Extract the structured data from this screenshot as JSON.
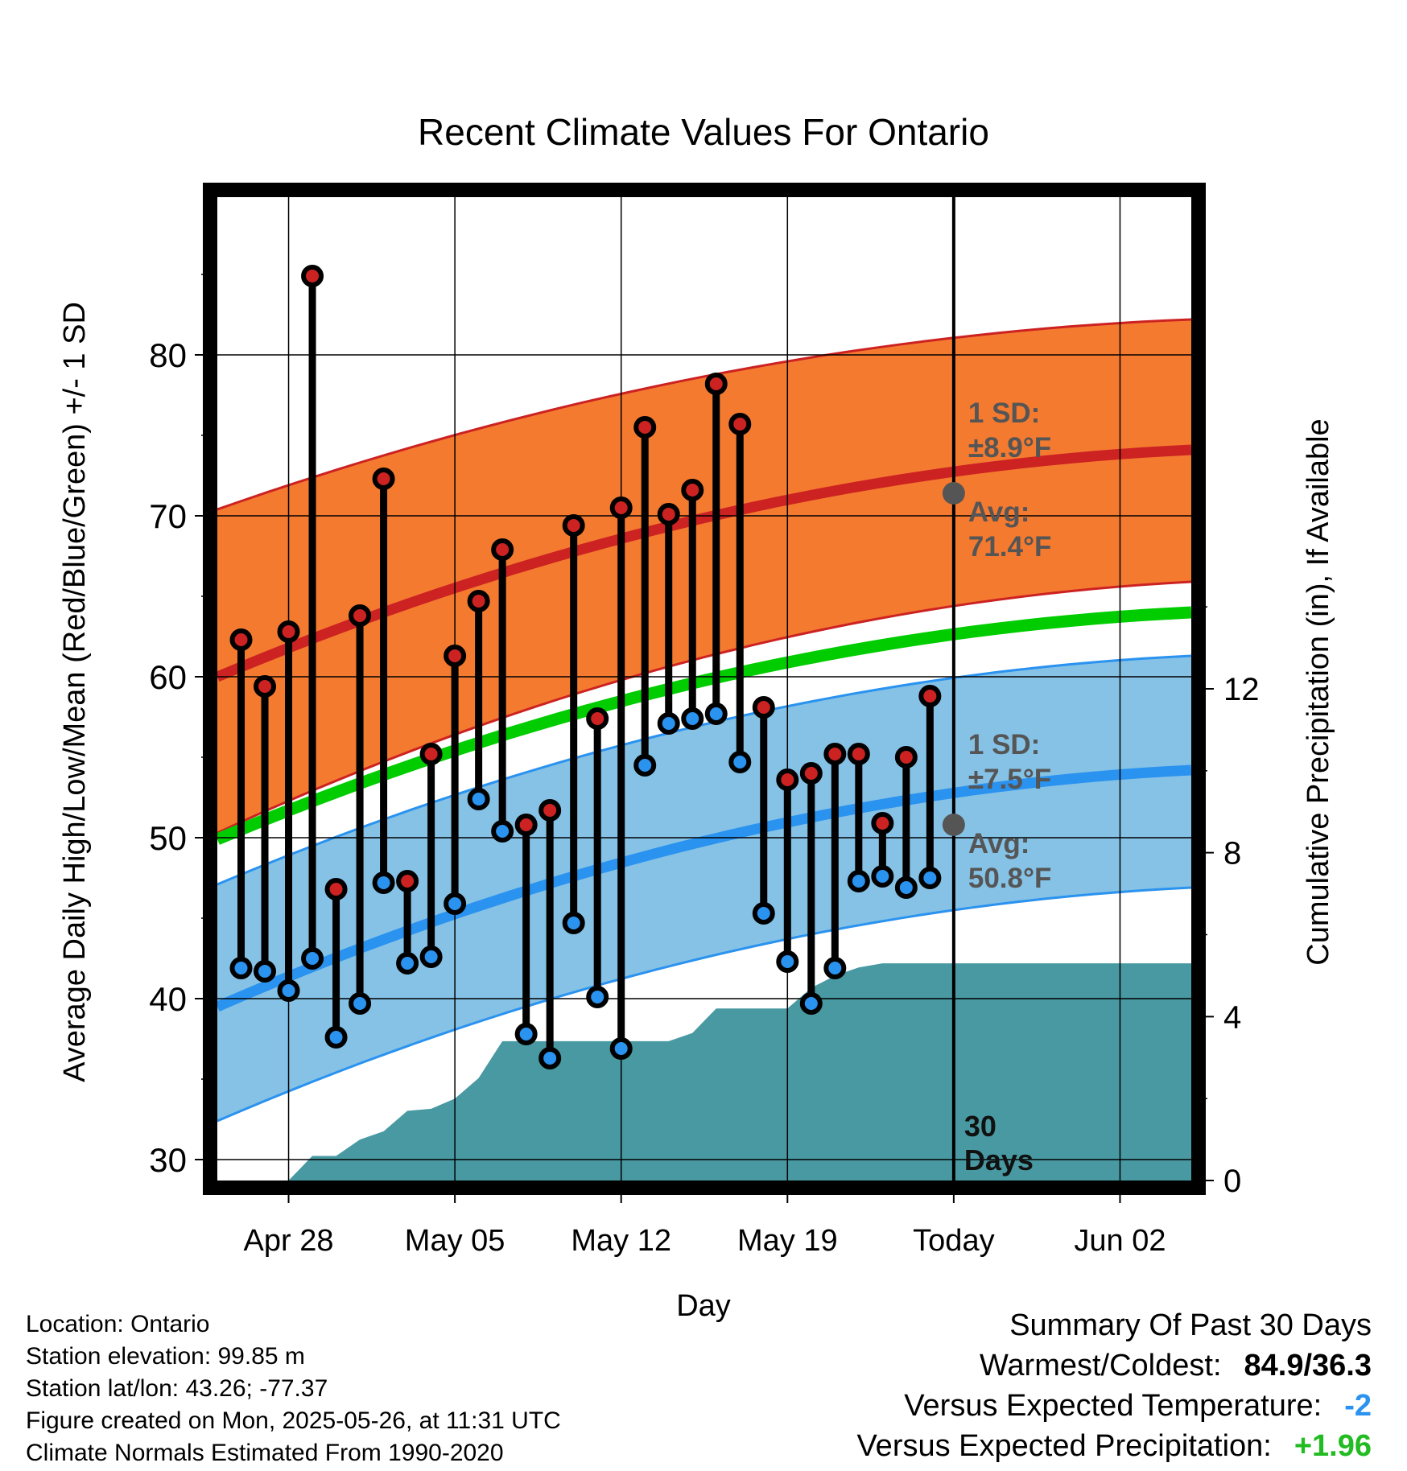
{
  "chart_data": {
    "type": "line",
    "title": "Recent Climate Values For Ontario",
    "xlabel": "Day",
    "ylabel": "Average Daily High/Low/Mean (Red/Blue/Green) +/- 1 SD",
    "y2label": "Cumulative Precipitation (in), If Available",
    "xticks": [
      "Apr 28",
      "May 05",
      "May 12",
      "May 19",
      "Today",
      "Jun 02"
    ],
    "yticks": [
      30,
      40,
      50,
      60,
      70,
      80
    ],
    "y2ticks": [
      0,
      4,
      8,
      12
    ],
    "ylim": [
      28.7,
      89.8
    ],
    "y2lim": [
      0,
      24
    ],
    "xlim": [
      -3,
      38
    ],
    "xticks_day_index": [
      0,
      7,
      14,
      21,
      28,
      35
    ],
    "today_day_index": 28,
    "today_label": "30 Days",
    "normals": {
      "high_avg": [
        60.0,
        74.1
      ],
      "high_upper": [
        70.4,
        82.2
      ],
      "high_lower": [
        50.3,
        65.9
      ],
      "low_avg": [
        39.5,
        54.2
      ],
      "low_upper": [
        47.1,
        61.3
      ],
      "low_lower": [
        32.4,
        46.9
      ],
      "mean_avg": [
        49.9,
        64.0
      ]
    },
    "annotations": {
      "high_sd": "1 SD:",
      "high_sd_value": "±8.9°F",
      "high_avg_label": "Avg:",
      "high_avg_value": "71.4°F",
      "low_sd": "1 SD:",
      "low_sd_value": "±7.5°F",
      "low_avg_label": "Avg:",
      "low_avg_value": "50.8°F"
    },
    "daily_days": [
      -2,
      -1,
      0,
      1,
      2,
      3,
      4,
      5,
      6,
      7,
      8,
      9,
      10,
      11,
      12,
      13,
      14,
      15,
      16,
      17,
      18,
      19,
      20,
      21,
      22,
      23,
      24,
      25,
      26,
      27
    ],
    "daily_high": [
      62.3,
      59.4,
      62.8,
      84.9,
      46.8,
      63.8,
      72.3,
      47.3,
      55.2,
      61.3,
      64.7,
      67.9,
      50.8,
      51.7,
      69.4,
      57.4,
      70.5,
      75.5,
      70.1,
      71.6,
      78.2,
      75.7,
      58.1,
      53.6,
      54.0,
      55.2,
      55.2,
      50.9,
      55.0,
      58.8
    ],
    "daily_low": [
      41.9,
      41.7,
      40.5,
      42.5,
      37.6,
      39.7,
      47.2,
      42.2,
      42.6,
      45.9,
      52.4,
      50.4,
      37.8,
      36.3,
      44.7,
      40.1,
      36.9,
      54.5,
      57.1,
      57.4,
      57.7,
      54.7,
      45.3,
      42.3,
      39.7,
      41.9,
      47.3,
      47.6,
      46.9,
      47.5
    ],
    "precip_days": [
      0,
      1,
      2,
      3,
      4,
      5,
      6,
      7,
      8,
      9,
      10,
      11,
      12,
      13,
      14,
      15,
      16,
      17,
      18,
      19,
      20,
      21,
      22,
      23,
      24,
      25,
      26,
      27,
      28,
      37
    ],
    "precip_cum": [
      0,
      0.6,
      0.6,
      1.0,
      1.2,
      1.7,
      1.75,
      2.0,
      2.5,
      3.4,
      3.4,
      3.4,
      3.4,
      3.4,
      3.4,
      3.4,
      3.4,
      3.6,
      4.2,
      4.2,
      4.2,
      4.2,
      4.7,
      5.0,
      5.2,
      5.3,
      5.3,
      5.3,
      5.3,
      5.3
    ]
  },
  "colors": {
    "high_band": "#f47a30",
    "high_line": "#cc2222",
    "low_band": "#85c2e6",
    "low_line": "#2a92ef",
    "mean_line": "#00cc00",
    "precip": "#4899a2",
    "annotation": "#555555",
    "marker_high": "#cc2222",
    "marker_low": "#2a92ef",
    "temp_diff": "#2a92ef",
    "precip_diff": "#22bb22"
  },
  "footer": {
    "location": "Location: Ontario",
    "elevation": "Station elevation: 99.85 m",
    "latlon": "Station lat/lon: 43.26; -77.37",
    "created": "Figure created on Mon, 2025-05-26, at 11:31 UTC",
    "normals": "Climate Normals Estimated From 1990-2020"
  },
  "summary": {
    "heading": "Summary Of Past 30 Days",
    "warmest_label": "Warmest/Coldest:",
    "warmest_value": "84.9/36.3",
    "temp_label": "Versus Expected Temperature:",
    "temp_value": "-2",
    "precip_label": "Versus Expected Precipitation:",
    "precip_value": "+1.96"
  }
}
